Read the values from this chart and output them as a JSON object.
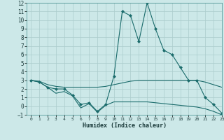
{
  "x": [
    0,
    1,
    2,
    3,
    4,
    5,
    6,
    7,
    8,
    9,
    10,
    11,
    12,
    13,
    14,
    15,
    16,
    17,
    18,
    19,
    20,
    21,
    22,
    23
  ],
  "line1": [
    3.0,
    2.8,
    2.2,
    2.0,
    2.0,
    1.3,
    0.2,
    0.4,
    -0.6,
    0.2,
    3.5,
    11.0,
    10.5,
    7.5,
    12.0,
    9.0,
    6.5,
    6.0,
    4.5,
    3.0,
    3.0,
    1.0,
    0.2,
    -0.8
  ],
  "line2": [
    3.0,
    2.9,
    2.5,
    2.3,
    2.2,
    2.2,
    2.2,
    2.2,
    2.2,
    2.3,
    2.5,
    2.7,
    2.9,
    3.0,
    3.0,
    3.0,
    3.0,
    3.0,
    3.0,
    3.0,
    3.0,
    2.8,
    2.5,
    2.2
  ],
  "line3": [
    3.0,
    2.8,
    2.2,
    1.5,
    1.7,
    1.2,
    -0.2,
    0.3,
    -0.7,
    0.1,
    0.5,
    0.5,
    0.5,
    0.5,
    0.5,
    0.4,
    0.3,
    0.2,
    0.1,
    0.0,
    -0.1,
    -0.3,
    -0.6,
    -1.0
  ],
  "line_color": "#1a6b6b",
  "bg_color": "#cce8e8",
  "grid_color": "#aacccc",
  "xlabel": "Humidex (Indice chaleur)",
  "ylim": [
    -1,
    12
  ],
  "xlim": [
    -0.5,
    23
  ],
  "yticks": [
    -1,
    0,
    1,
    2,
    3,
    4,
    5,
    6,
    7,
    8,
    9,
    10,
    11,
    12
  ],
  "xticks": [
    0,
    1,
    2,
    3,
    4,
    5,
    6,
    7,
    8,
    9,
    10,
    11,
    12,
    13,
    14,
    15,
    16,
    17,
    18,
    19,
    20,
    21,
    22,
    23
  ]
}
